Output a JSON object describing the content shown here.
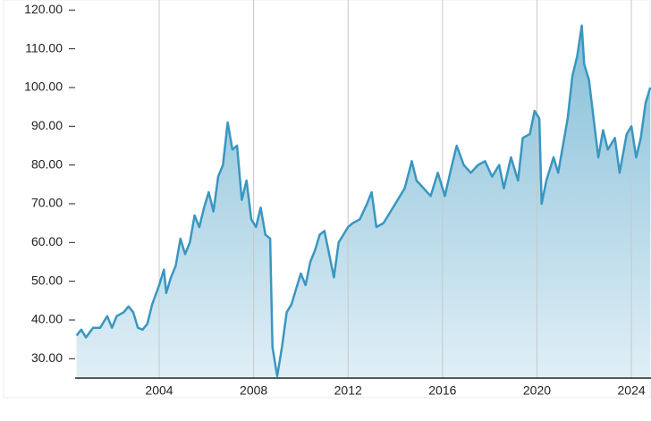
{
  "chart_data": {
    "type": "area",
    "color": "#3a96c0",
    "grid": true,
    "xlim": [
      2000.44,
      2024.83
    ],
    "ylim": [
      25,
      122.6
    ],
    "xticks": [
      2004,
      2008,
      2012,
      2016,
      2020,
      2024
    ],
    "yticks": [
      {
        "value": 30,
        "label": "30.00"
      },
      {
        "value": 40,
        "label": "40.00"
      },
      {
        "value": 50,
        "label": "50.00"
      },
      {
        "value": 60,
        "label": "60.00"
      },
      {
        "value": 70,
        "label": "70.00"
      },
      {
        "value": 80,
        "label": "80.00"
      },
      {
        "value": 90,
        "label": "90.00"
      },
      {
        "value": 100,
        "label": "100.00"
      },
      {
        "value": 110,
        "label": "110.00"
      },
      {
        "value": 120,
        "label": "120.00"
      }
    ],
    "x": [
      2000.5,
      2000.7,
      2000.9,
      2001.2,
      2001.5,
      2001.8,
      2002.0,
      2002.2,
      2002.5,
      2002.7,
      2002.9,
      2003.1,
      2003.3,
      2003.5,
      2003.7,
      2004.0,
      2004.2,
      2004.3,
      2004.5,
      2004.7,
      2004.9,
      2005.1,
      2005.3,
      2005.5,
      2005.7,
      2005.9,
      2006.1,
      2006.3,
      2006.5,
      2006.7,
      2006.9,
      2007.1,
      2007.3,
      2007.5,
      2007.7,
      2007.9,
      2008.1,
      2008.3,
      2008.5,
      2008.7,
      2008.8,
      2009.0,
      2009.2,
      2009.4,
      2009.6,
      2009.8,
      2010.0,
      2010.2,
      2010.4,
      2010.6,
      2010.8,
      2011.0,
      2011.2,
      2011.4,
      2011.6,
      2011.8,
      2012.0,
      2012.2,
      2012.5,
      2012.8,
      2013.0,
      2013.2,
      2013.5,
      2013.8,
      2014.1,
      2014.4,
      2014.7,
      2014.9,
      2015.2,
      2015.5,
      2015.8,
      2016.1,
      2016.4,
      2016.6,
      2016.9,
      2017.2,
      2017.5,
      2017.8,
      2018.1,
      2018.4,
      2018.6,
      2018.9,
      2019.2,
      2019.4,
      2019.7,
      2019.9,
      2020.1,
      2020.2,
      2020.4,
      2020.7,
      2020.9,
      2021.1,
      2021.3,
      2021.5,
      2021.7,
      2021.9,
      2022.0,
      2022.2,
      2022.4,
      2022.6,
      2022.8,
      2023.0,
      2023.3,
      2023.5,
      2023.8,
      2024.0,
      2024.2,
      2024.4,
      2024.6,
      2024.8
    ],
    "values": [
      36,
      37.5,
      35.5,
      38,
      38,
      41,
      38,
      41,
      42,
      43.5,
      42,
      38,
      37.5,
      39,
      44,
      49,
      53,
      47,
      51,
      54,
      61,
      57,
      60,
      67,
      64,
      69,
      73,
      68,
      77,
      80,
      91,
      84,
      85,
      71,
      76,
      66,
      64,
      69,
      62,
      61,
      33,
      25.5,
      33,
      42,
      44,
      48,
      52,
      49,
      55,
      58,
      62,
      63,
      57,
      51,
      60,
      62,
      64,
      65,
      66,
      70,
      73,
      64,
      65,
      68,
      71,
      74,
      81,
      76,
      74,
      72,
      78,
      72,
      80,
      85,
      80,
      78,
      80,
      81,
      77,
      80,
      74,
      82,
      76,
      87,
      88,
      94,
      92,
      70,
      76,
      82,
      78,
      85,
      92,
      103,
      108,
      116,
      106,
      102,
      92,
      82,
      89,
      84,
      87,
      78,
      88,
      90,
      82,
      87,
      96,
      100
    ]
  }
}
